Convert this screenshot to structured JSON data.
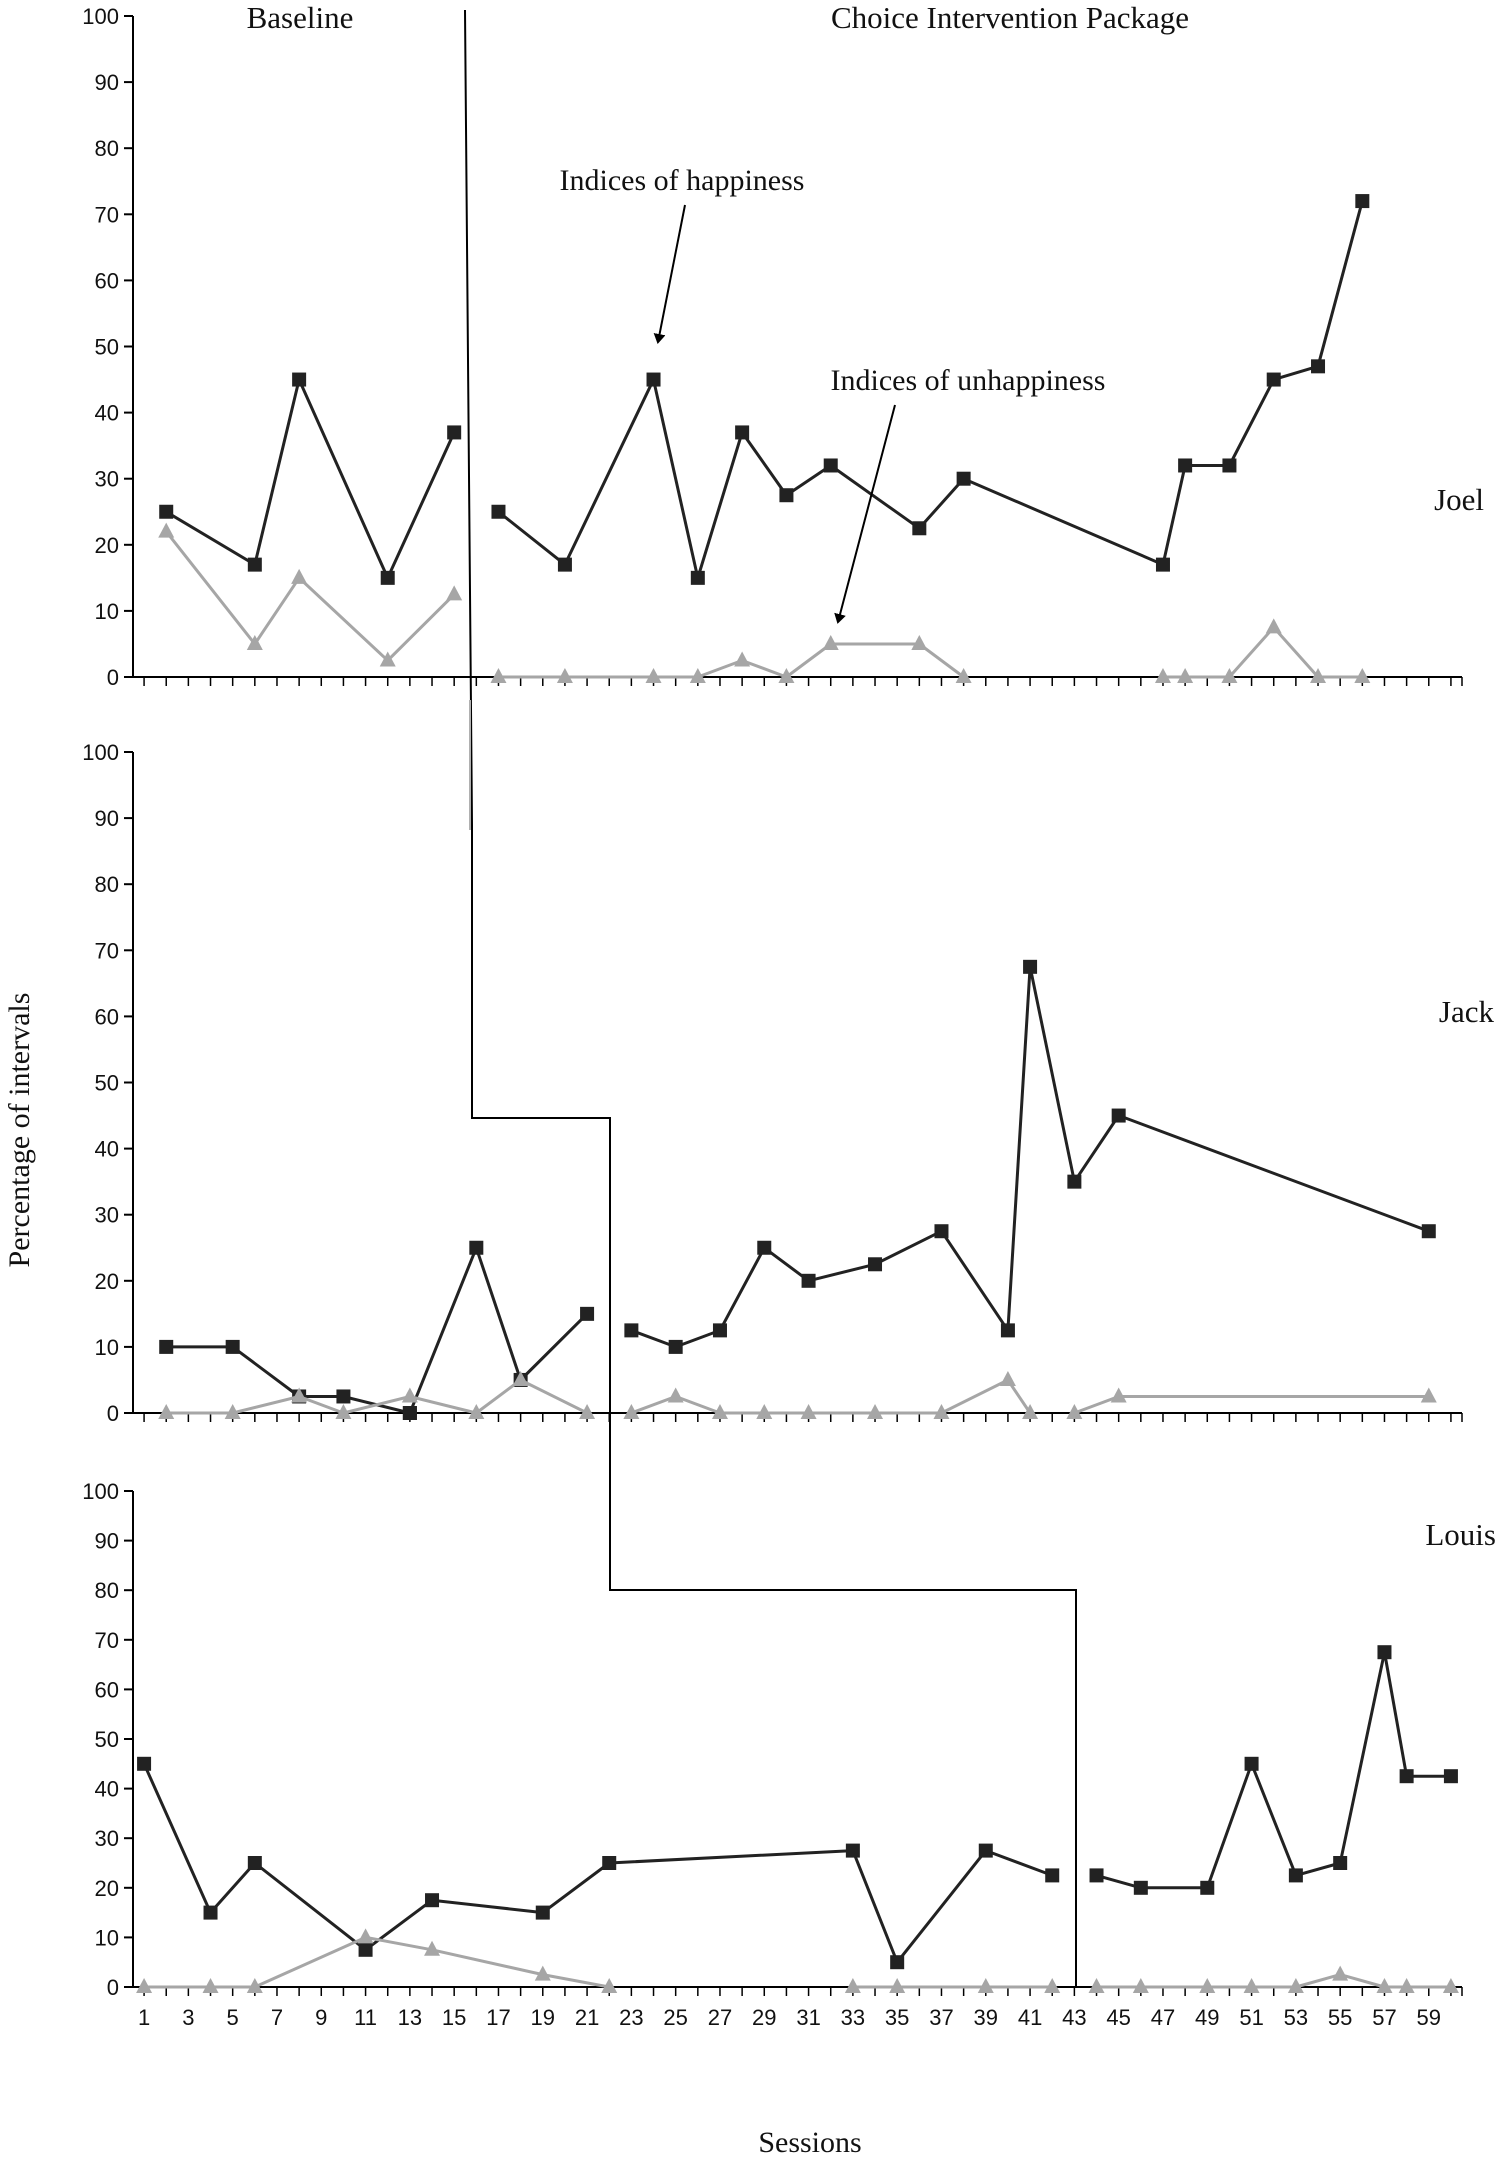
{
  "chart_data": {
    "type": "line",
    "phase_labels": [
      "Baseline",
      "Choice Intervention Package"
    ],
    "xlabel": "Sessions",
    "ylabel": "Percentage of intervals",
    "x_tick_labels": [
      "1",
      "3",
      "5",
      "7",
      "9",
      "11",
      "13",
      "15",
      "17",
      "19",
      "21",
      "23",
      "25",
      "27",
      "29",
      "31",
      "33",
      "35",
      "37",
      "39",
      "41",
      "43",
      "45",
      "47",
      "49",
      "51",
      "53",
      "55",
      "57",
      "59"
    ],
    "xlim": [
      0.5,
      60.5
    ],
    "ylim": [
      0,
      100
    ],
    "y_ticks": [
      "0",
      "10",
      "20",
      "30",
      "40",
      "50",
      "60",
      "70",
      "80",
      "90",
      "100"
    ],
    "annotations": [
      "Indices of happiness",
      "Indices of unhappiness"
    ],
    "colors": {
      "happiness": "#222222",
      "unhappiness": "#a6a6a6",
      "axis": "#000000"
    },
    "markers": {
      "happiness": "square",
      "unhappiness": "triangle"
    },
    "phase_change_after_session": [
      15,
      22,
      43
    ],
    "panels": [
      {
        "participant": "Joel",
        "series": [
          {
            "key": "happiness",
            "segments": [
              [
                [
                  2,
                  25
                ],
                [
                  6,
                  17
                ],
                [
                  8,
                  45
                ],
                [
                  12,
                  15
                ],
                [
                  15,
                  37
                ]
              ],
              [
                [
                  17,
                  25
                ],
                [
                  20,
                  17
                ],
                [
                  24,
                  45
                ],
                [
                  26,
                  15
                ],
                [
                  28,
                  37
                ],
                [
                  30,
                  27.5
                ],
                [
                  32,
                  32
                ],
                [
                  36,
                  22.5
                ],
                [
                  38,
                  30
                ],
                [
                  47,
                  17
                ],
                [
                  48,
                  32
                ],
                [
                  50,
                  32
                ],
                [
                  52,
                  45
                ],
                [
                  54,
                  47
                ],
                [
                  56,
                  72
                ]
              ]
            ]
          },
          {
            "key": "unhappiness",
            "segments": [
              [
                [
                  2,
                  22
                ],
                [
                  6,
                  5
                ],
                [
                  8,
                  15
                ],
                [
                  12,
                  2.5
                ],
                [
                  15,
                  12.5
                ]
              ],
              [
                [
                  17,
                  0
                ],
                [
                  20,
                  0
                ],
                [
                  24,
                  0
                ],
                [
                  26,
                  0
                ],
                [
                  28,
                  2.5
                ],
                [
                  30,
                  0
                ],
                [
                  32,
                  5
                ],
                [
                  36,
                  5
                ],
                [
                  38,
                  0
                ]
              ],
              [
                [
                  47,
                  0
                ],
                [
                  48,
                  0
                ],
                [
                  50,
                  0
                ],
                [
                  52,
                  7.5
                ],
                [
                  54,
                  0
                ],
                [
                  56,
                  0
                ]
              ]
            ]
          }
        ]
      },
      {
        "participant": "Jack",
        "series": [
          {
            "key": "happiness",
            "segments": [
              [
                [
                  2,
                  10
                ],
                [
                  5,
                  10
                ],
                [
                  8,
                  2.5
                ],
                [
                  10,
                  2.5
                ],
                [
                  13,
                  0
                ]
              ],
              [
                [
                  13,
                  0
                ],
                [
                  16,
                  25
                ],
                [
                  18,
                  5
                ],
                [
                  21,
                  15
                ]
              ],
              [
                [
                  23,
                  12.5
                ],
                [
                  25,
                  10
                ],
                [
                  27,
                  12.5
                ],
                [
                  29,
                  25
                ],
                [
                  31,
                  20
                ],
                [
                  34,
                  22.5
                ],
                [
                  37,
                  27.5
                ],
                [
                  40,
                  12.5
                ],
                [
                  41,
                  67.5
                ],
                [
                  43,
                  35
                ],
                [
                  45,
                  45
                ],
                [
                  59,
                  27.5
                ]
              ]
            ]
          },
          {
            "key": "unhappiness",
            "segments": [
              [
                [
                  2,
                  0
                ],
                [
                  5,
                  0
                ],
                [
                  8,
                  2.5
                ],
                [
                  10,
                  0
                ],
                [
                  13,
                  2.5
                ],
                [
                  16,
                  0
                ],
                [
                  18,
                  5
                ],
                [
                  21,
                  0
                ]
              ],
              [
                [
                  23,
                  0
                ],
                [
                  25,
                  2.5
                ],
                [
                  27,
                  0
                ],
                [
                  29,
                  0
                ],
                [
                  31,
                  0
                ],
                [
                  34,
                  0
                ],
                [
                  37,
                  0
                ],
                [
                  40,
                  5
                ],
                [
                  41,
                  0
                ]
              ],
              [
                [
                  43,
                  0
                ],
                [
                  45,
                  2.5
                ],
                [
                  59,
                  2.5
                ]
              ]
            ]
          }
        ]
      },
      {
        "participant": "Louis",
        "series": [
          {
            "key": "happiness",
            "segments": [
              [
                [
                  1,
                  45
                ],
                [
                  4,
                  15
                ],
                [
                  6,
                  25
                ],
                [
                  11,
                  7.5
                ],
                [
                  14,
                  17.5
                ],
                [
                  19,
                  15
                ],
                [
                  22,
                  25
                ],
                [
                  33,
                  27.5
                ],
                [
                  35,
                  5
                ],
                [
                  39,
                  27.5
                ],
                [
                  42,
                  22.5
                ]
              ],
              [
                [
                  44,
                  22.5
                ],
                [
                  46,
                  20
                ],
                [
                  49,
                  20
                ],
                [
                  51,
                  45
                ],
                [
                  53,
                  22.5
                ],
                [
                  55,
                  25
                ],
                [
                  57,
                  67.5
                ],
                [
                  58,
                  42.5
                ],
                [
                  60,
                  42.5
                ]
              ]
            ]
          },
          {
            "key": "unhappiness",
            "segments": [
              [
                [
                  1,
                  0
                ],
                [
                  4,
                  0
                ],
                [
                  6,
                  0
                ],
                [
                  11,
                  10
                ],
                [
                  14,
                  7.5
                ],
                [
                  19,
                  2.5
                ],
                [
                  22,
                  0
                ]
              ],
              [
                [
                  33,
                  0
                ],
                [
                  35,
                  0
                ],
                [
                  39,
                  0
                ],
                [
                  42,
                  0
                ]
              ],
              [
                [
                  44,
                  0
                ],
                [
                  46,
                  0
                ],
                [
                  49,
                  0
                ],
                [
                  51,
                  0
                ],
                [
                  53,
                  0
                ],
                [
                  55,
                  2.5
                ],
                [
                  57,
                  0
                ],
                [
                  58,
                  0
                ],
                [
                  60,
                  0
                ]
              ]
            ]
          }
        ]
      }
    ]
  }
}
